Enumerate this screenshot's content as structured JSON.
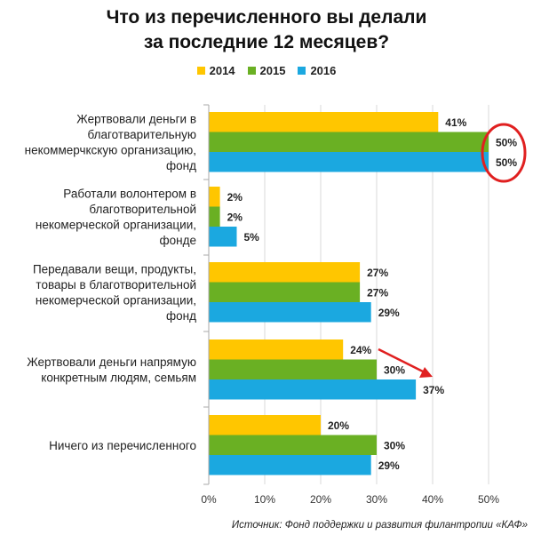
{
  "title_line1": "Что из перечисленного вы делали",
  "title_line2": "за последние 12 месяцев?",
  "source": "Источник: Фонд поддержки и развития филантропии «КАФ»",
  "colors": {
    "2014": "#FFC600",
    "2015": "#6AB023",
    "2016": "#1BA8E0",
    "highlight": "#E02020"
  },
  "chart_data": {
    "type": "bar",
    "orientation": "horizontal",
    "categories": [
      [
        "Жертвовали деньги в",
        "благотварительную",
        "некоммерчкскую организацию,",
        "фонд"
      ],
      [
        "Работали волонтером в",
        "благотворительной",
        "некомерческой организации,",
        "фонде"
      ],
      [
        "Передавали вещи, продукты,",
        "товары в благотворительной",
        "некомерческой организации,",
        "фонд"
      ],
      [
        "Жертвовали деньги напрямую",
        "конкретным людям, семьям"
      ],
      [
        "Ничего из перечисленного"
      ]
    ],
    "series": [
      {
        "name": "2014",
        "values": [
          41,
          2,
          27,
          24,
          20
        ]
      },
      {
        "name": "2015",
        "values": [
          50,
          2,
          27,
          30,
          30
        ]
      },
      {
        "name": "2016",
        "values": [
          50,
          5,
          29,
          37,
          29
        ]
      }
    ],
    "value_suffix": "%",
    "xlim": [
      0,
      50
    ],
    "xticks": [
      "0%",
      "10%",
      "20%",
      "30%",
      "40%",
      "50%"
    ],
    "grid": true,
    "legend_position": "top-center"
  }
}
